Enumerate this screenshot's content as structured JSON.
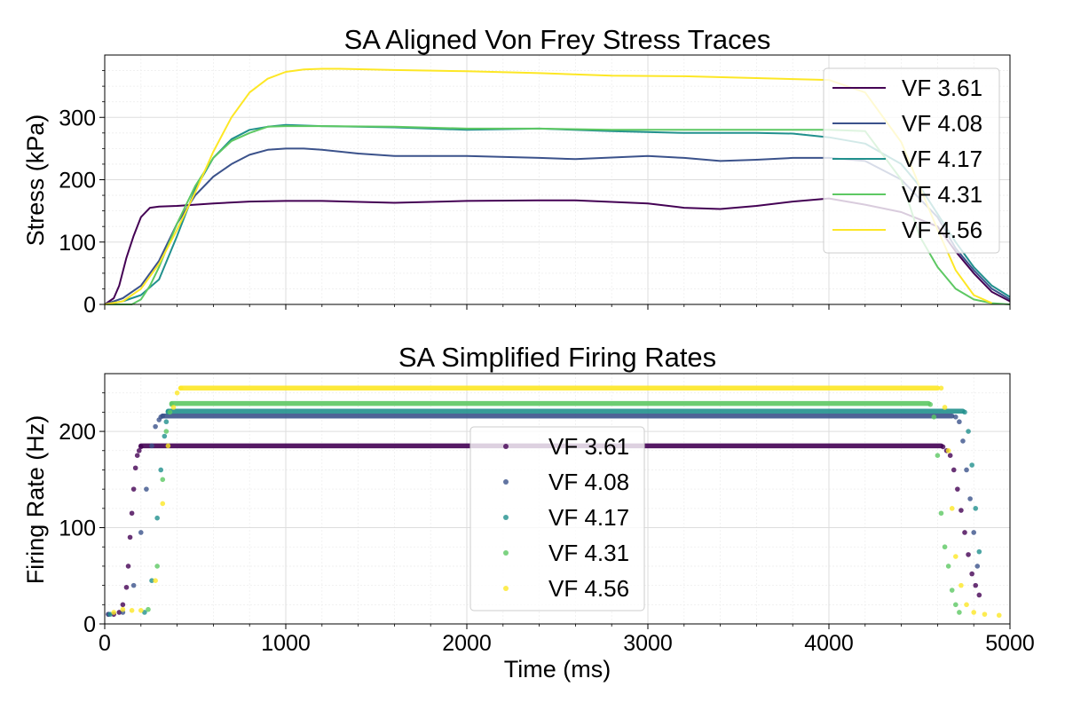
{
  "chart_data": [
    {
      "type": "line",
      "title": "SA Aligned Von Frey Stress Traces",
      "xlabel": "",
      "ylabel": "Stress (kPa)",
      "xlim": [
        0,
        5000
      ],
      "ylim": [
        0,
        400
      ],
      "x_ticks": [
        0,
        1000,
        2000,
        3000,
        4000,
        5000
      ],
      "y_ticks": [
        0,
        100,
        200,
        300
      ],
      "y_tick_labels": [
        "0",
        "100",
        "200",
        "300"
      ],
      "grid": true,
      "legend_position": "upper right",
      "series": [
        {
          "name": "VF 3.61",
          "color": "#440154",
          "x": [
            0,
            50,
            80,
            120,
            160,
            200,
            250,
            300,
            400,
            600,
            800,
            1000,
            1200,
            1600,
            2000,
            2400,
            2600,
            3000,
            3200,
            3400,
            3600,
            3800,
            4000,
            4200,
            4400,
            4600,
            4700,
            4800,
            4900,
            5000
          ],
          "y": [
            0,
            10,
            30,
            75,
            110,
            140,
            155,
            157,
            158,
            162,
            165,
            166,
            166,
            163,
            166,
            167,
            167,
            162,
            155,
            153,
            158,
            165,
            170,
            160,
            148,
            125,
            85,
            50,
            20,
            5
          ]
        },
        {
          "name": "VF 4.08",
          "color": "#3b528b",
          "x": [
            0,
            100,
            200,
            300,
            400,
            500,
            600,
            700,
            800,
            900,
            1000,
            1100,
            1200,
            1400,
            1600,
            2000,
            2400,
            2600,
            3000,
            3200,
            3400,
            3600,
            3800,
            4000,
            4200,
            4400,
            4600,
            4700,
            4800,
            4900,
            5000
          ],
          "y": [
            0,
            10,
            30,
            70,
            130,
            175,
            205,
            225,
            240,
            248,
            250,
            250,
            248,
            242,
            238,
            238,
            235,
            233,
            238,
            235,
            230,
            232,
            235,
            235,
            230,
            200,
            140,
            90,
            55,
            25,
            8
          ]
        },
        {
          "name": "VF 4.17",
          "color": "#21908d",
          "x": [
            0,
            100,
            200,
            300,
            400,
            500,
            600,
            700,
            800,
            900,
            1000,
            1200,
            1600,
            2000,
            2400,
            2800,
            3200,
            3600,
            3800,
            4000,
            4200,
            4400,
            4500,
            4600,
            4700,
            4800,
            4900,
            5000
          ],
          "y": [
            0,
            5,
            15,
            40,
            110,
            185,
            235,
            265,
            280,
            285,
            288,
            286,
            284,
            280,
            282,
            278,
            275,
            275,
            274,
            268,
            258,
            225,
            190,
            145,
            100,
            60,
            30,
            12
          ]
        },
        {
          "name": "VF 4.31",
          "color": "#5dc863",
          "x": [
            0,
            150,
            200,
            250,
            300,
            400,
            500,
            600,
            700,
            800,
            900,
            1000,
            1200,
            1600,
            2000,
            2400,
            2800,
            3200,
            3600,
            4000,
            4200,
            4400,
            4500,
            4600,
            4700,
            4800,
            4900,
            5000
          ],
          "y": [
            0,
            0,
            8,
            30,
            60,
            130,
            190,
            235,
            262,
            275,
            285,
            286,
            286,
            285,
            282,
            282,
            280,
            280,
            280,
            280,
            278,
            200,
            110,
            60,
            25,
            8,
            2,
            0
          ]
        },
        {
          "name": "VF 4.56",
          "color": "#fde725",
          "x": [
            0,
            100,
            200,
            300,
            400,
            500,
            600,
            700,
            800,
            900,
            1000,
            1100,
            1200,
            1300,
            1600,
            2000,
            2400,
            2800,
            3200,
            3600,
            4000,
            4200,
            4400,
            4500,
            4600,
            4700,
            4800,
            4900
          ],
          "y": [
            0,
            5,
            25,
            65,
            120,
            180,
            245,
            300,
            340,
            362,
            373,
            377,
            378,
            378,
            376,
            374,
            371,
            367,
            366,
            363,
            360,
            340,
            260,
            190,
            120,
            55,
            15,
            2
          ]
        }
      ]
    },
    {
      "type": "scatter",
      "title": "SA Simplified Firing Rates",
      "xlabel": "Time (ms)",
      "ylabel": "Firing Rate (Hz)",
      "xlim": [
        0,
        5000
      ],
      "ylim": [
        0,
        260
      ],
      "x_ticks": [
        0,
        1000,
        2000,
        3000,
        4000,
        5000
      ],
      "x_tick_labels": [
        "0",
        "1000",
        "2000",
        "3000",
        "4000",
        "5000"
      ],
      "y_ticks": [
        0,
        100,
        200
      ],
      "y_tick_labels": [
        "0",
        "100",
        "200"
      ],
      "grid": true,
      "legend_position": "center",
      "series": [
        {
          "name": "VF 3.61",
          "color": "#440154",
          "x": [
            20,
            50,
            80,
            100,
            120,
            130,
            140,
            150,
            160,
            170,
            180,
            190,
            200,
            4630,
            4650,
            4670,
            4690,
            4710,
            4730,
            4750,
            4770,
            4790,
            4810,
            4830
          ],
          "y": [
            10,
            10,
            12,
            20,
            38,
            60,
            90,
            115,
            140,
            162,
            175,
            180,
            184,
            184,
            180,
            175,
            160,
            140,
            118,
            95,
            72,
            52,
            40,
            30
          ],
          "plateau": {
            "x0": 200,
            "x1": 4620,
            "y": 185
          }
        },
        {
          "name": "VF 4.08",
          "color": "#3b528b",
          "x": [
            20,
            100,
            160,
            200,
            230,
            260,
            280,
            300,
            310,
            320,
            4700,
            4720,
            4740,
            4760,
            4780,
            4800,
            4820
          ],
          "y": [
            10,
            12,
            40,
            95,
            140,
            185,
            205,
            212,
            215,
            216,
            215,
            210,
            190,
            160,
            130,
            95,
            60
          ],
          "plateau": {
            "x0": 320,
            "x1": 4680,
            "y": 216
          }
        },
        {
          "name": "VF 4.17",
          "color": "#21908d",
          "x": [
            30,
            220,
            260,
            290,
            310,
            330,
            340,
            350,
            4750,
            4770,
            4790,
            4810,
            4830
          ],
          "y": [
            10,
            12,
            45,
            110,
            160,
            195,
            210,
            220,
            220,
            200,
            165,
            120,
            75
          ],
          "plateau": {
            "x0": 350,
            "x1": 4740,
            "y": 221
          }
        },
        {
          "name": "VF 4.31",
          "color": "#5dc863",
          "x": [
            240,
            290,
            320,
            340,
            360,
            370,
            4560,
            4580,
            4600,
            4620,
            4640,
            4660,
            4680,
            4700,
            4720
          ],
          "y": [
            15,
            60,
            150,
            200,
            220,
            228,
            228,
            215,
            175,
            115,
            80,
            60,
            35,
            20,
            12
          ],
          "plateau": {
            "x0": 370,
            "x1": 4550,
            "y": 229
          }
        },
        {
          "name": "VF 4.56",
          "color": "#fde725",
          "x": [
            50,
            100,
            150,
            200,
            280,
            320,
            350,
            380,
            400,
            420,
            4620,
            4640,
            4660,
            4680,
            4700,
            4730,
            4760,
            4800,
            4860,
            4940
          ],
          "y": [
            12,
            15,
            14,
            14,
            45,
            125,
            185,
            225,
            240,
            245,
            245,
            225,
            180,
            120,
            70,
            40,
            20,
            12,
            10,
            9
          ],
          "plateau": {
            "x0": 420,
            "x1": 4600,
            "y": 245
          }
        }
      ]
    }
  ]
}
